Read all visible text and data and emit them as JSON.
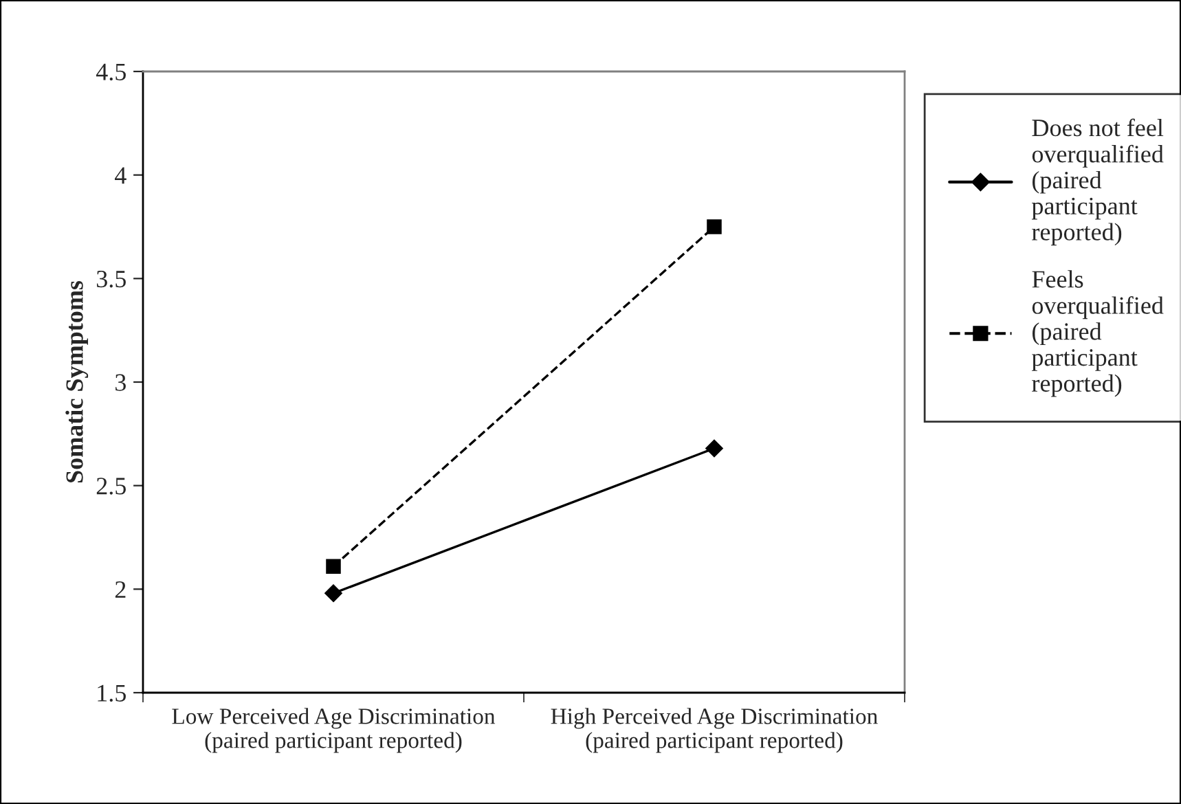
{
  "chart_data": {
    "type": "line",
    "ylabel": "Somatic Symptoms",
    "categories": [
      "Low Perceived Age Discrimination\n(paired participant reported)",
      "High Perceived Age Discrimination\n(paired participant reported)"
    ],
    "series": [
      {
        "name": "Does not feel\noverqualified\n(paired\nparticipant\nreported)",
        "color": "#000000",
        "values": [
          1.98,
          2.68
        ],
        "marker": "diamond",
        "line_style": "solid"
      },
      {
        "name": "Feels\noverqualified\n(paired\nparticipant\nreported)",
        "color": "#000000",
        "values": [
          2.11,
          3.75
        ],
        "marker": "square",
        "line_style": "dashed"
      }
    ],
    "ylim": [
      1.5,
      4.5
    ],
    "yticks": [
      1.5,
      2,
      2.5,
      3,
      3.5,
      4,
      4.5
    ],
    "grid": false,
    "legend": "right"
  }
}
